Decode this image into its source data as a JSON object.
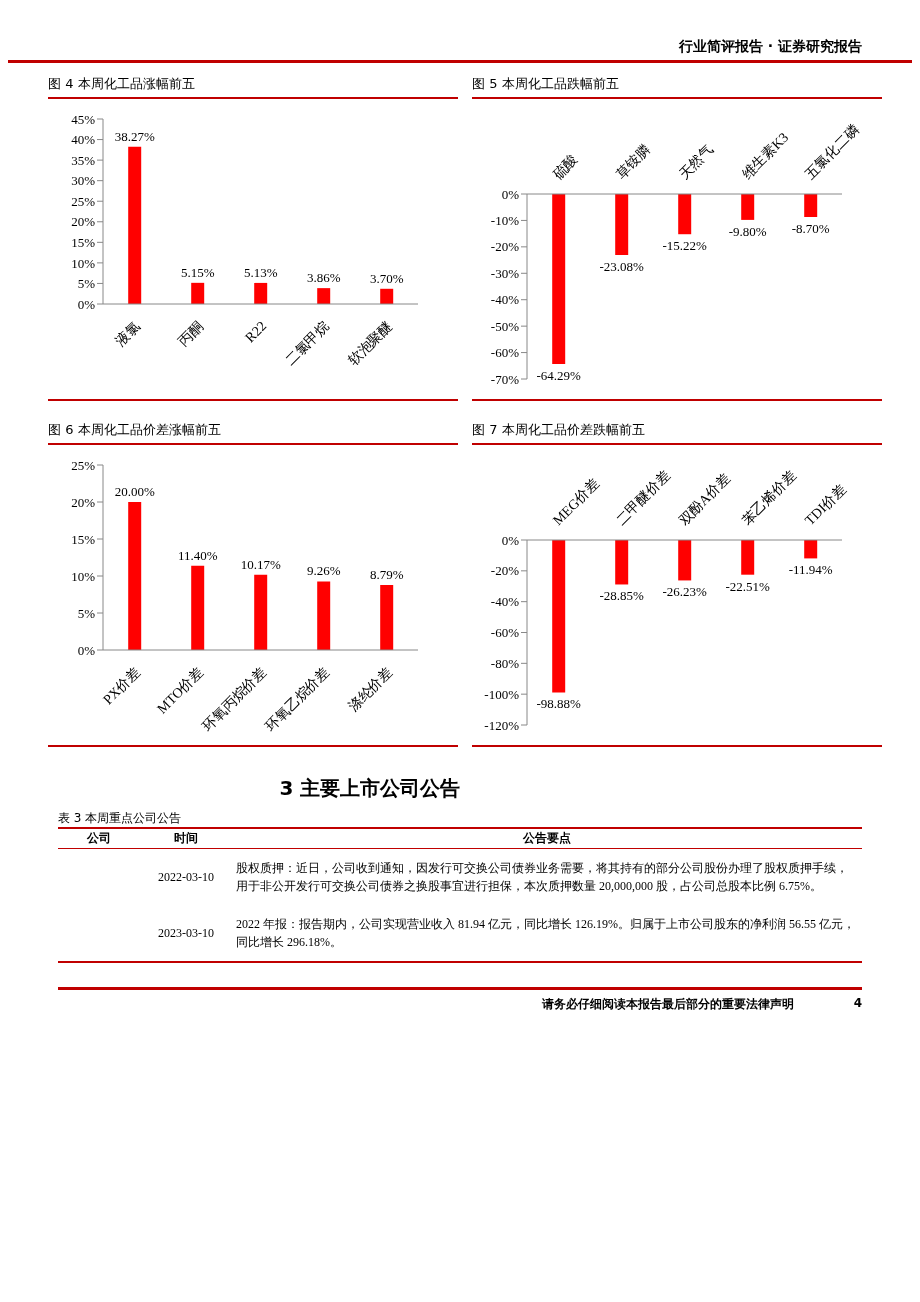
{
  "chart_data": [
    {
      "type": "other",
      "annotations": [
        "行业简评报告 · 证券研究报告"
      ]
    },
    {
      "type": "bar",
      "title": "图 4 本周化工品涨幅前五",
      "categories": [
        "液氯",
        "丙酮",
        "R22",
        "二氯甲烷",
        "软泡聚醚"
      ],
      "values": [
        38.27,
        5.15,
        5.13,
        3.86,
        3.7
      ],
      "value_labels": [
        "38.27%",
        "5.15%",
        "5.13%",
        "3.86%",
        "3.70%"
      ],
      "color": "#ff0000",
      "ylim": [
        0,
        45
      ],
      "yticks": [
        {
          "value": 0,
          "label": "0%"
        },
        {
          "value": 5,
          "label": "5%"
        },
        {
          "value": 10,
          "label": "10%"
        },
        {
          "value": 15,
          "label": "15%"
        },
        {
          "value": 20,
          "label": "20%"
        },
        {
          "value": 25,
          "label": "25%"
        },
        {
          "value": 30,
          "label": "30%"
        },
        {
          "value": 35,
          "label": "35%"
        },
        {
          "value": 40,
          "label": "40%"
        },
        {
          "value": 45,
          "label": "45%"
        }
      ]
    },
    {
      "type": "bar",
      "title": "图 5 本周化工品跌幅前五",
      "categories": [
        "硫酸",
        "草铵膦",
        "天然气",
        "维生素K3",
        "五氯化二磷"
      ],
      "values": [
        -64.29,
        -23.08,
        -15.22,
        -9.8,
        -8.7
      ],
      "value_labels": [
        "-64.29%",
        "-23.08%",
        "-15.22%",
        "-9.80%",
        "-8.70%"
      ],
      "color": "#ff0000",
      "ylim": [
        -70,
        0
      ],
      "yticks": [
        {
          "value": -70,
          "label": "-70%"
        },
        {
          "value": -60,
          "label": "-60%"
        },
        {
          "value": -50,
          "label": "-50%"
        },
        {
          "value": -40,
          "label": "-40%"
        },
        {
          "value": -30,
          "label": "-30%"
        },
        {
          "value": -20,
          "label": "-20%"
        },
        {
          "value": -10,
          "label": "-10%"
        },
        {
          "value": 0,
          "label": "0%"
        }
      ]
    },
    {
      "type": "bar",
      "title": "图 6 本周化工品价差涨幅前五",
      "categories": [
        "PX价差",
        "MTO价差",
        "环氧丙烷价差",
        "环氧乙烷价差",
        "涤纶价差"
      ],
      "values": [
        20.0,
        11.4,
        10.17,
        9.26,
        8.79
      ],
      "value_labels": [
        "20.00%",
        "11.40%",
        "10.17%",
        "9.26%",
        "8.79%"
      ],
      "color": "#ff0000",
      "ylim": [
        0,
        25
      ],
      "yticks": [
        {
          "value": 0,
          "label": "0%"
        },
        {
          "value": 5,
          "label": "5%"
        },
        {
          "value": 10,
          "label": "10%"
        },
        {
          "value": 15,
          "label": "15%"
        },
        {
          "value": 20,
          "label": "20%"
        },
        {
          "value": 25,
          "label": "25%"
        }
      ]
    },
    {
      "type": "bar",
      "title": "图 7 本周化工品价差跌幅前五",
      "categories": [
        "MEG价差",
        "二甲醚价差",
        "双酚A价差",
        "苯乙烯价差",
        "TDI价差"
      ],
      "values": [
        -98.88,
        -28.85,
        -26.23,
        -22.51,
        -11.94
      ],
      "value_labels": [
        "-98.88%",
        "-28.85%",
        "-26.23%",
        "-22.51%",
        "-11.94%"
      ],
      "color": "#ff0000",
      "ylim": [
        -120,
        0
      ],
      "yticks": [
        {
          "value": -120,
          "label": "-120%"
        },
        {
          "value": -100,
          "label": "-100%"
        },
        {
          "value": -80,
          "label": "-80%"
        },
        {
          "value": -60,
          "label": "-60%"
        },
        {
          "value": -40,
          "label": "-40%"
        },
        {
          "value": -20,
          "label": "-20%"
        },
        {
          "value": 0,
          "label": "0%"
        }
      ]
    },
    {
      "type": "other",
      "title": "3 主要上市公司公告",
      "subtitle": "表 3 本周重点公司公告",
      "annotations": [
        "公司",
        "时间",
        "公告要点",
        "2022-03-10",
        "股权质押：近日，公司收到通知，因发行可交换公司债券业务需要，将其持有的部分公司股份办理了股权质押手续，用于非公开发行可交换公司债券之换股事宜进行担保，本次质押数量 20,000,000 股，占公司总股本比例 6.75%。",
        "2023-03-10",
        "2022 年报：报告期内，公司实现营业收入 81.94 亿元，同比增长 126.19%。归属于上市公司股东的净利润 56.55 亿元，同比增长 296.18%。"
      ]
    },
    {
      "type": "other",
      "annotations": [
        "请务必仔细阅读本报告最后部分的重要法律声明",
        "4"
      ]
    }
  ]
}
